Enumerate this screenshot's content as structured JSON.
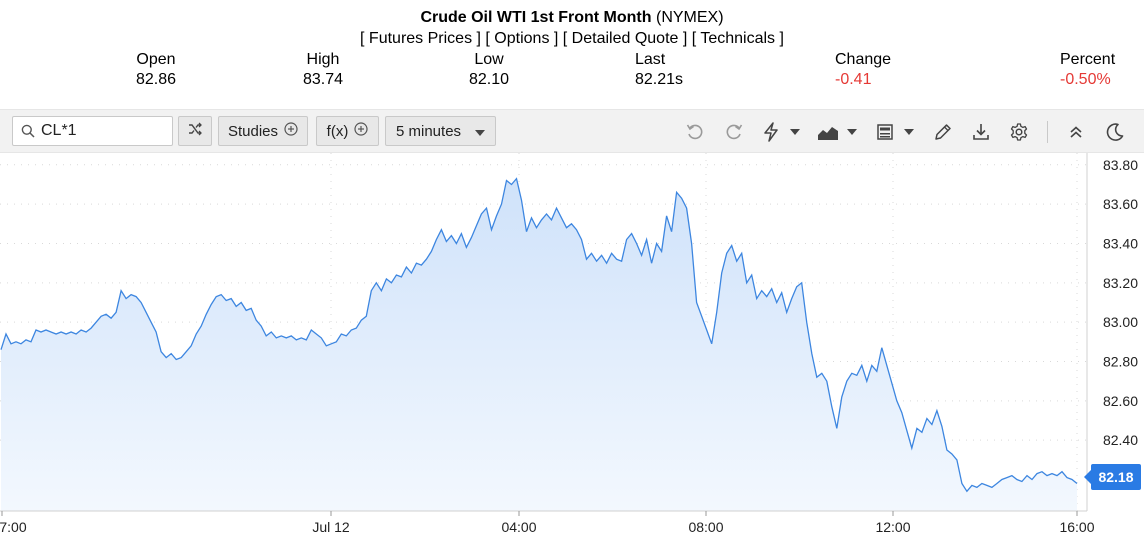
{
  "header": {
    "instrument_name": "Crude Oil WTI 1st Front Month",
    "exchange": "(NYMEX)",
    "links": [
      "[ Futures Prices ]",
      "[ Options ]",
      "[ Detailed Quote ]",
      "[ Technicals ]"
    ],
    "stats": [
      {
        "label": "Open",
        "value": "82.86"
      },
      {
        "label": "High",
        "value": "83.74"
      },
      {
        "label": "Low",
        "value": "82.10"
      },
      {
        "label": "Last",
        "value": "82.21s"
      },
      {
        "label": "Change",
        "value": "-0.41"
      },
      {
        "label": "Percent",
        "value": "-0.50%"
      }
    ]
  },
  "toolbar": {
    "symbol": "CL*1",
    "studies_label": "Studies",
    "fx_label": "f(x)",
    "interval_label": "5 minutes",
    "icons": [
      "search-icon",
      "shuffle-icon",
      "plus-circle-icon",
      "chevron-down-icon",
      "undo-icon",
      "redo-icon",
      "lightning-icon",
      "area-chart-icon",
      "layout-icon",
      "pencil-icon",
      "download-icon",
      "gear-icon",
      "collapse-icon",
      "moon-icon"
    ]
  },
  "colors": {
    "line": "#3d86e0",
    "fill_top": "#cfe2fa",
    "fill_bottom": "#f3f8fe",
    "negative": "#e53935",
    "price_tag": "#2a7be4"
  },
  "chart_data": {
    "type": "area",
    "x_ticks": [
      "7:00",
      "Jul 12",
      "04:00",
      "08:00",
      "12:00",
      "16:00"
    ],
    "y_ticks": [
      82.4,
      82.6,
      82.8,
      83.0,
      83.2,
      83.4,
      83.6,
      83.8
    ],
    "ylim": [
      82.04,
      83.86
    ],
    "grid": true,
    "last_price_label": "82.18",
    "series": [
      {
        "values": [
          82.86,
          82.94,
          82.89,
          82.9,
          82.89,
          82.91,
          82.9,
          82.96,
          82.95,
          82.96,
          82.95,
          82.94,
          82.95,
          82.94,
          82.95,
          82.94,
          82.96,
          82.95,
          82.97,
          83.0,
          83.03,
          83.04,
          83.02,
          83.05,
          83.16,
          83.12,
          83.14,
          83.13,
          83.1,
          83.05,
          83.0,
          82.95,
          82.85,
          82.82,
          82.84,
          82.81,
          82.82,
          82.85,
          82.88,
          82.94,
          82.98,
          83.04,
          83.09,
          83.13,
          83.14,
          83.11,
          83.12,
          83.08,
          83.1,
          83.06,
          83.07,
          83.01,
          82.98,
          82.93,
          82.95,
          82.92,
          82.93,
          82.92,
          82.93,
          82.91,
          82.92,
          82.91,
          82.96,
          82.94,
          82.92,
          82.88,
          82.89,
          82.9,
          82.94,
          82.93,
          82.96,
          82.97,
          83.01,
          83.03,
          83.16,
          83.2,
          83.16,
          83.22,
          83.2,
          83.24,
          83.23,
          83.28,
          83.25,
          83.3,
          83.29,
          83.32,
          83.36,
          83.42,
          83.47,
          83.41,
          83.44,
          83.4,
          83.45,
          83.38,
          83.43,
          83.49,
          83.55,
          83.58,
          83.47,
          83.54,
          83.6,
          83.72,
          83.7,
          83.73,
          83.62,
          83.46,
          83.53,
          83.48,
          83.52,
          83.55,
          83.52,
          83.58,
          83.53,
          83.48,
          83.5,
          83.47,
          83.42,
          83.32,
          83.35,
          83.31,
          83.34,
          83.3,
          83.35,
          83.32,
          83.31,
          83.42,
          83.45,
          83.4,
          83.34,
          83.42,
          83.3,
          83.4,
          83.36,
          83.54,
          83.46,
          83.66,
          83.63,
          83.58,
          83.4,
          83.1,
          83.03,
          82.96,
          82.89,
          83.05,
          83.25,
          83.35,
          83.39,
          83.31,
          83.35,
          83.2,
          83.24,
          83.12,
          83.16,
          83.13,
          83.17,
          83.1,
          83.15,
          83.05,
          83.12,
          83.18,
          83.2,
          83.0,
          82.84,
          82.72,
          82.74,
          82.7,
          82.57,
          82.46,
          82.62,
          82.7,
          82.74,
          82.73,
          82.78,
          82.7,
          82.78,
          82.75,
          82.87,
          82.78,
          82.69,
          82.6,
          82.54,
          82.45,
          82.36,
          82.46,
          82.44,
          82.51,
          82.48,
          82.55,
          82.47,
          82.35,
          82.33,
          82.3,
          82.18,
          82.14,
          82.17,
          82.16,
          82.18,
          82.17,
          82.16,
          82.18,
          82.2,
          82.21,
          82.22,
          82.2,
          82.19,
          82.22,
          82.2,
          82.23,
          82.24,
          82.22,
          82.23,
          82.22,
          82.24,
          82.21,
          82.2,
          82.18
        ]
      }
    ]
  }
}
